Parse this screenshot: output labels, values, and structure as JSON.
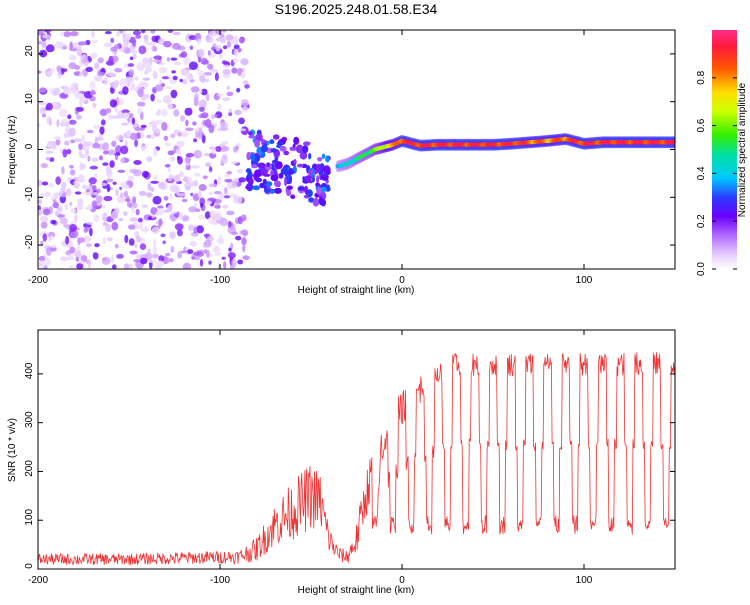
{
  "figure_title": "S196.2025.248.01.58.E34",
  "chart_data": [
    {
      "type": "heatmap",
      "xlabel": "Height of straight line (km)",
      "ylabel": "Frequency (Hz)",
      "xlim": [
        -200,
        150
      ],
      "ylim": [
        -25,
        25
      ],
      "x_ticks": [
        -200,
        -100,
        0,
        100
      ],
      "x_tick_labels": [
        "-200",
        "-100",
        "0",
        "100"
      ],
      "y_ticks": [
        -20,
        -10,
        0,
        10,
        20
      ],
      "y_tick_labels": [
        "-20",
        "-10",
        "0",
        "10",
        "20"
      ],
      "colorbar": {
        "label": "Normalized spectral amplitude",
        "range": [
          0,
          1
        ],
        "ticks": [
          0,
          0.2,
          0.4,
          0.6,
          0.8
        ],
        "tick_labels": [
          "0.0",
          "0.2",
          "0.4",
          "0.6",
          "0.8"
        ]
      },
      "ridge": {
        "x": [
          -35,
          -30,
          -25,
          -20,
          -15,
          -10,
          -5,
          0,
          10,
          20,
          30,
          40,
          50,
          60,
          70,
          80,
          90,
          100,
          110,
          120,
          130,
          140,
          150
        ],
        "freq": [
          -3.5,
          -3,
          -2,
          -1,
          0,
          0.5,
          1,
          1.8,
          0.8,
          1,
          1,
          1,
          1,
          1.2,
          1.5,
          1.8,
          2.2,
          1.2,
          1.5,
          1.5,
          1.5,
          1.5,
          1.5
        ],
        "amplitude": [
          0.4,
          0.45,
          0.5,
          0.55,
          0.6,
          0.7,
          0.8,
          0.95,
          0.95,
          0.95,
          0.95,
          0.95,
          0.95,
          0.95,
          0.9,
          0.85,
          0.9,
          0.95,
          0.95,
          0.95,
          0.95,
          0.95,
          0.95
        ]
      }
    },
    {
      "type": "line",
      "xlabel": "Height of straight line (km)",
      "ylabel": "SNR (10 * v/v)",
      "xlim": [
        -200,
        150
      ],
      "ylim": [
        0,
        490
      ],
      "x_ticks": [
        -200,
        -100,
        0,
        100
      ],
      "x_tick_labels": [
        "-200",
        "-100",
        "0",
        "100"
      ],
      "y_ticks": [
        0,
        100,
        200,
        300,
        400
      ],
      "y_tick_labels": [
        "0",
        "100",
        "200",
        "300",
        "400"
      ],
      "series": [
        {
          "name": "SNR",
          "color": "#ee3333",
          "envelope_x": [
            -200,
            -150,
            -90,
            -80,
            -70,
            -60,
            -50,
            -45,
            -40,
            -35,
            -30,
            -25,
            -20,
            -15,
            -10,
            -5,
            0,
            10,
            20,
            30,
            40,
            60,
            80,
            100,
            120,
            150
          ],
          "envelope_mean": [
            20,
            20,
            25,
            40,
            90,
            120,
            150,
            140,
            60,
            30,
            25,
            60,
            150,
            220,
            260,
            300,
            330,
            370,
            400,
            420,
            420,
            420,
            420,
            420,
            420,
            420
          ],
          "envelope_spread": [
            12,
            12,
            14,
            25,
            45,
            60,
            70,
            60,
            30,
            15,
            15,
            35,
            50,
            50,
            45,
            40,
            35,
            30,
            25,
            25,
            25,
            25,
            25,
            25,
            25,
            25
          ],
          "dip_positions": [
            -15,
            -5,
            5,
            15,
            25,
            35,
            45,
            55,
            65,
            75,
            85,
            95,
            105,
            115,
            125,
            135,
            145
          ],
          "dip_level": 90
        }
      ]
    }
  ]
}
